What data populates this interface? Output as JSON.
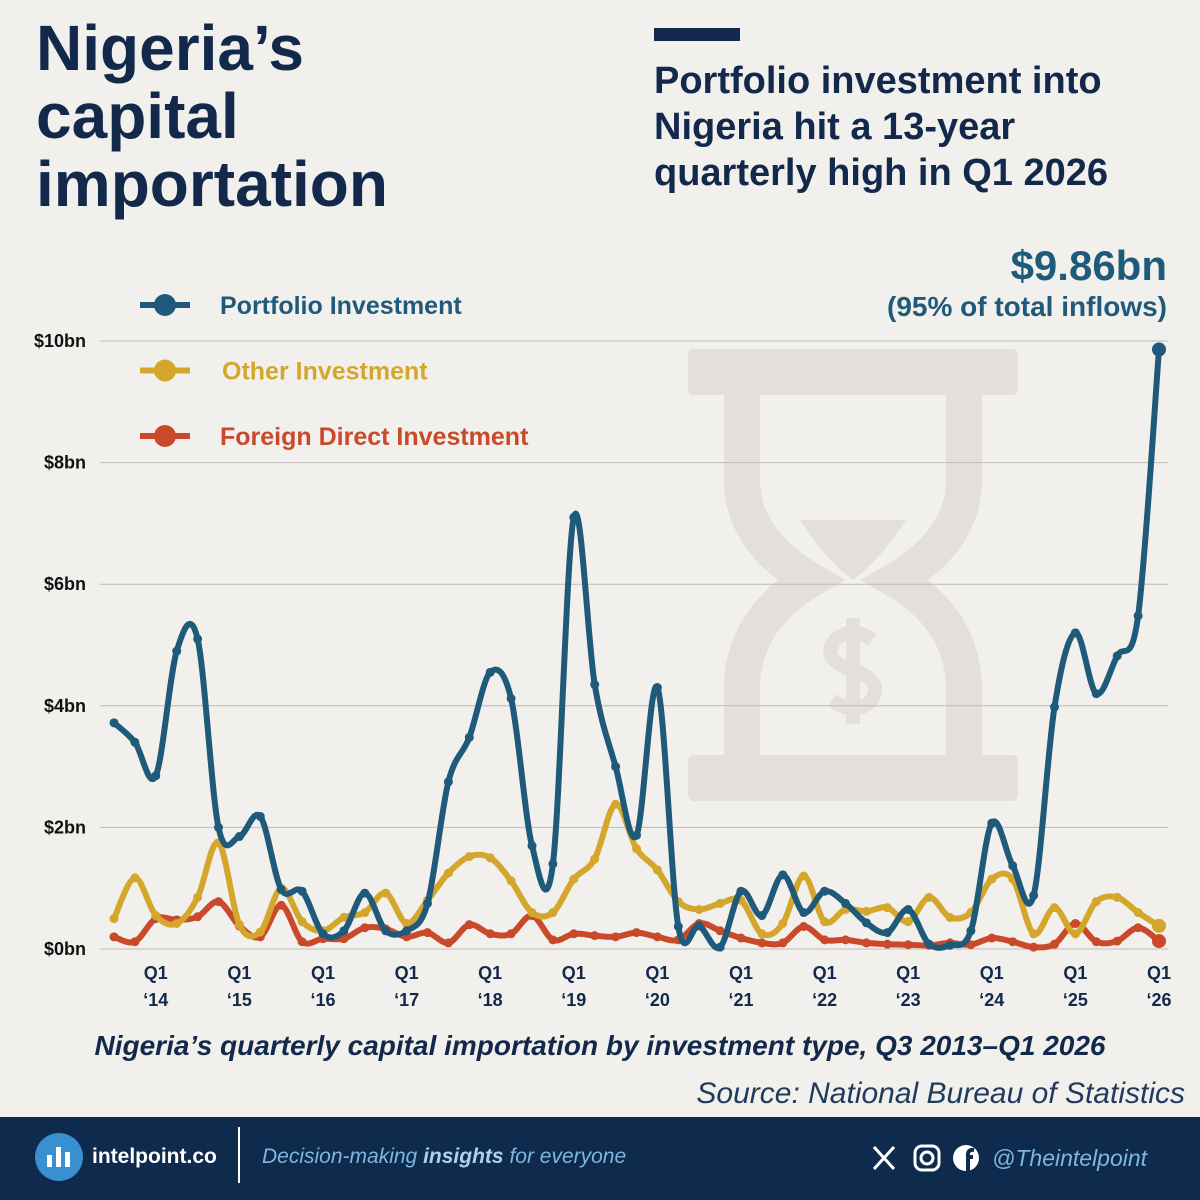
{
  "chart_data": {
    "type": "line",
    "title": "Nigeria’s capital importation",
    "subtitle": "Portfolio investment into Nigeria hit a 13-year quarterly high in Q1 2026",
    "annotations": [
      "$9.86bn",
      "(95% of total inflows)"
    ],
    "caption": "Nigeria’s quarterly capital importation by investment type, Q3 2013–Q1 2026",
    "source": "Source: National Bureau of Statistics",
    "categories": [
      null,
      null,
      "Q1\n‘14",
      null,
      null,
      null,
      "Q1\n‘15",
      null,
      null,
      null,
      "Q1\n‘16",
      null,
      null,
      null,
      "Q1\n‘17",
      null,
      null,
      null,
      "Q1\n‘18",
      null,
      null,
      null,
      "Q1\n‘19",
      null,
      null,
      null,
      "Q1\n‘20",
      null,
      null,
      null,
      "Q1\n‘21",
      null,
      null,
      null,
      "Q1\n‘22",
      null,
      null,
      null,
      "Q1\n‘23",
      null,
      null,
      null,
      "Q1\n‘24",
      null,
      null,
      null,
      "Q1\n‘25",
      null,
      null,
      null,
      "Q1\n‘26"
    ],
    "series": [
      {
        "name": "Portfolio Investment",
        "color": "#1f5a7a",
        "values": [
          3.72,
          3.4,
          2.85,
          4.9,
          5.1,
          2.0,
          1.85,
          2.18,
          0.98,
          0.95,
          0.25,
          0.3,
          0.92,
          0.3,
          0.3,
          0.75,
          2.75,
          3.48,
          4.55,
          4.12,
          1.7,
          1.4,
          7.1,
          4.35,
          3.0,
          1.87,
          4.3,
          0.37,
          0.38,
          0.03,
          0.95,
          0.55,
          1.22,
          0.6,
          0.95,
          0.75,
          0.43,
          0.27,
          0.65,
          0.08,
          0.06,
          0.3,
          2.07,
          1.37,
          0.88,
          3.98,
          5.2,
          4.2,
          4.82,
          5.48,
          9.86
        ]
      },
      {
        "name": "Other Investment",
        "color": "#d4a72c",
        "values": [
          0.5,
          1.17,
          0.55,
          0.42,
          0.85,
          1.75,
          0.4,
          0.28,
          1.0,
          0.45,
          0.3,
          0.52,
          0.6,
          0.92,
          0.42,
          0.8,
          1.25,
          1.52,
          1.5,
          1.12,
          0.6,
          0.6,
          1.15,
          1.48,
          2.38,
          1.65,
          1.3,
          0.78,
          0.65,
          0.75,
          0.8,
          0.25,
          0.42,
          1.2,
          0.45,
          0.65,
          0.62,
          0.68,
          0.45,
          0.85,
          0.52,
          0.6,
          1.15,
          1.15,
          0.25,
          0.68,
          0.25,
          0.78,
          0.85,
          0.6,
          0.38
        ]
      },
      {
        "name": "Foreign Direct Investment",
        "color": "#c9492a",
        "values": [
          0.2,
          0.12,
          0.5,
          0.48,
          0.53,
          0.78,
          0.38,
          0.2,
          0.72,
          0.12,
          0.17,
          0.17,
          0.35,
          0.33,
          0.2,
          0.27,
          0.1,
          0.4,
          0.25,
          0.25,
          0.55,
          0.15,
          0.25,
          0.22,
          0.2,
          0.27,
          0.2,
          0.15,
          0.42,
          0.3,
          0.18,
          0.1,
          0.1,
          0.37,
          0.15,
          0.15,
          0.1,
          0.08,
          0.07,
          0.06,
          0.1,
          0.07,
          0.18,
          0.12,
          0.03,
          0.08,
          0.42,
          0.12,
          0.13,
          0.35,
          0.13
        ]
      }
    ],
    "ylim": [
      0,
      10
    ],
    "yticks": [
      {
        "value": 0,
        "label": "$0bn"
      },
      {
        "value": 2,
        "label": "$2bn"
      },
      {
        "value": 4,
        "label": "$4bn"
      },
      {
        "value": 6,
        "label": "$6bn"
      },
      {
        "value": 8,
        "label": "$8bn"
      },
      {
        "value": 10,
        "label": "$10bn"
      }
    ],
    "grid": true,
    "smooth": true,
    "markers": true,
    "legend": "upper left"
  },
  "footer": {
    "site": "intelpoint.co",
    "tagline": [
      "Decision-making",
      "insights",
      "for everyone"
    ],
    "handle": "@Theintelpoint"
  }
}
